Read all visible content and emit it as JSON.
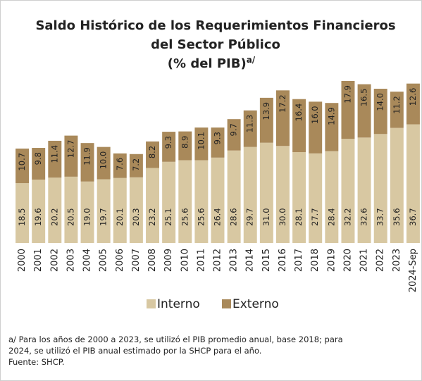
{
  "chart_data": {
    "type": "stacked_bar",
    "title": [
      "Saldo Histórico de los Requerimientos Financieros",
      "del Sector Público",
      "(% del PIB)"
    ],
    "title_superscript": "a/",
    "categories": [
      "2000",
      "2001",
      "2002",
      "2003",
      "2004",
      "2005",
      "2006",
      "2007",
      "2008",
      "2009",
      "2010",
      "2011",
      "2012",
      "2013",
      "2014",
      "2015",
      "2016",
      "2017",
      "2018",
      "2019",
      "2020",
      "2021",
      "2022",
      "2023",
      "2024-Sep"
    ],
    "series": [
      {
        "name": "Interno",
        "color": "#d8c8a2",
        "values": [
          18.5,
          19.6,
          20.2,
          20.5,
          19.0,
          19.7,
          20.1,
          20.3,
          23.2,
          25.1,
          25.6,
          25.6,
          26.4,
          28.6,
          29.7,
          31.0,
          30.0,
          28.1,
          27.7,
          28.4,
          32.2,
          32.6,
          33.7,
          35.6,
          36.7
        ],
        "value_labels": [
          "18.5",
          "19.6",
          "20.2",
          "20.5",
          "19.0",
          "19.7",
          "20.1",
          "20.3",
          "23.2",
          "25.1",
          "25.6",
          "25.6",
          "26.4",
          "28.6",
          "29.7",
          "31.0",
          "30.0",
          "28.1",
          "27.7",
          "28.4",
          "32.2",
          "32.6",
          "33.7",
          "35.6",
          "36.7"
        ]
      },
      {
        "name": "Externo",
        "color": "#a9895a",
        "values": [
          10.7,
          9.8,
          11.4,
          12.7,
          11.9,
          10.0,
          7.6,
          7.2,
          8.2,
          9.3,
          8.9,
          10.1,
          9.3,
          9.7,
          11.3,
          13.9,
          17.2,
          16.4,
          16.0,
          14.9,
          17.9,
          16.5,
          14.0,
          11.2,
          12.6
        ],
        "value_labels": [
          "10.7",
          "9.8",
          "11.4",
          "12.7",
          "11.9",
          "10.0",
          "7.6",
          "7.2",
          "8.2",
          "9.3",
          "8.9",
          "10.1",
          "9.3",
          "9.7",
          "11.3",
          "13.9",
          "17.2",
          "16.4",
          "16.0",
          "14.9",
          "17.9",
          "16.5",
          "14.0",
          "11.2",
          "12.6"
        ]
      }
    ],
    "note": [
      "a/ Para los años de 2000 a 2023, se utilizó el PIB promedio anual, base 2018; para",
      "2024, se utilizó el PIB anual estimado por la SHCP para el año."
    ],
    "source": "Fuente: SHCP."
  }
}
